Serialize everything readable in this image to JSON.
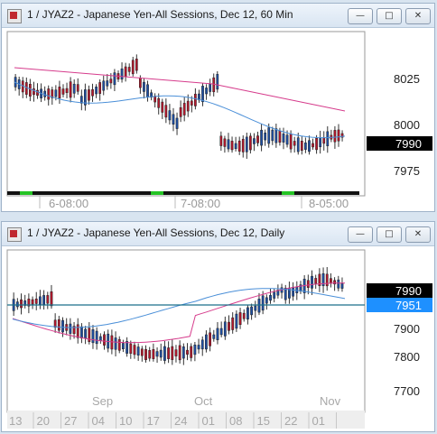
{
  "windows": [
    {
      "title": "1 / JYAZ2 - Japanese Yen-All Sessions, Dec 12, 60 Min",
      "buttons": {
        "minimize": "—",
        "maximize": "□",
        "close": "✕"
      },
      "price_labels": [
        "8025",
        "8000",
        "7975"
      ],
      "last_price": "7990",
      "time_labels": [
        "6-08:00",
        "7-08:00",
        "8-05:00"
      ],
      "colors": {
        "up": "#1f4fa3",
        "down": "#b5172c",
        "ma_fast": "#4a8fd8",
        "ma_slow": "#d63c8c",
        "session_bar": "#25c425"
      }
    },
    {
      "title": "1 / JYAZ2 - Japanese Yen-All Sessions, Dec 12, Daily",
      "buttons": {
        "minimize": "—",
        "maximize": "□",
        "close": "✕"
      },
      "price_labels": [
        "7900",
        "7800",
        "7700"
      ],
      "last_price": "7990",
      "line_price": "7951",
      "month_labels": [
        "Sep",
        "Oct",
        "Nov"
      ],
      "date_labels": [
        "13",
        "20",
        "27",
        "04",
        "10",
        "17",
        "24",
        "01",
        "08",
        "15",
        "22",
        "01"
      ],
      "colors": {
        "up": "#1f4fa3",
        "down": "#b5172c",
        "ma_fast": "#4a8fd8",
        "ma_slow": "#d63c8c",
        "hline": "#1b6f8a",
        "line_label_bg": "#1e90ff"
      }
    }
  ]
}
